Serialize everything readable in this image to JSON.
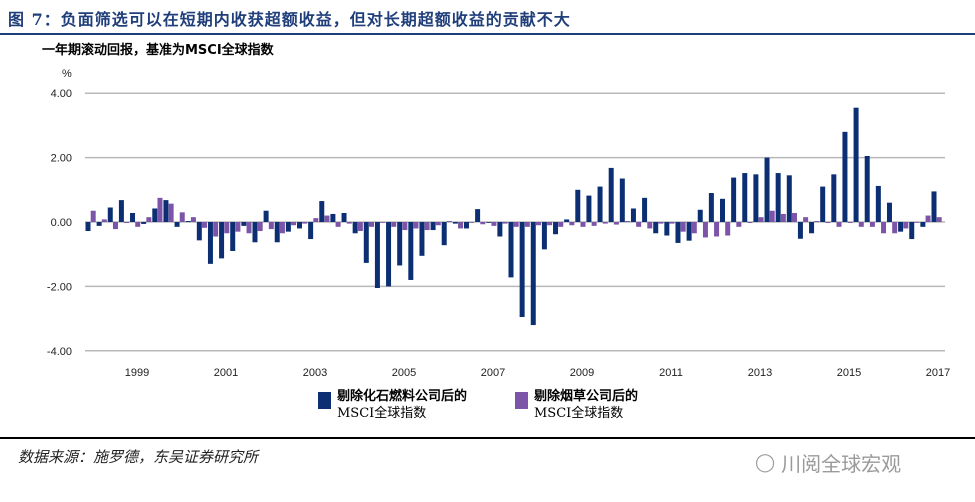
{
  "header": {
    "title": "图 7：负面筛选可以在短期内收获超额收益，但对长期超额收益的贡献不大",
    "subtitle": "一年期滚动回报，基准为MSCI全球指数"
  },
  "chart_data": {
    "type": "bar",
    "ylabel": "%",
    "ylim": [
      -4,
      4
    ],
    "yticks": [
      "4.00",
      "2.00",
      "0.00",
      "-2.00",
      "-4.00"
    ],
    "ytick_values": [
      4,
      2,
      0,
      -2,
      -4
    ],
    "xtick_labels": [
      "1999",
      "2001",
      "2003",
      "2005",
      "2007",
      "2009",
      "2011",
      "2013",
      "2015",
      "2017"
    ],
    "grid": true,
    "legend_placement": "bottom",
    "series": [
      {
        "name": "剔除化石燃料公司后的MSCI全球指数",
        "name_line1": "剔除化石燃料公司后的",
        "name_line2": "MSCI全球指数",
        "color": "#0b2f72",
        "values": [
          -0.28,
          -0.12,
          0.45,
          0.68,
          0.28,
          -0.06,
          0.42,
          0.68,
          -0.15,
          0.03,
          -0.57,
          -1.3,
          -1.13,
          -0.9,
          -0.12,
          -0.63,
          0.35,
          -0.63,
          -0.3,
          -0.2,
          -0.53,
          0.65,
          0.25,
          0.28,
          -0.35,
          -1.27,
          -2.05,
          -2.0,
          -1.35,
          -1.8,
          -1.05,
          -0.25,
          -0.72,
          -0.05,
          -0.2,
          0.4,
          0.0,
          -0.45,
          -1.72,
          -2.95,
          -3.2,
          -0.85,
          -0.38,
          0.08,
          1.0,
          0.82,
          1.1,
          1.68,
          1.35,
          0.42,
          0.75,
          -0.35,
          -0.42,
          -0.65,
          -0.58,
          0.38,
          0.9,
          0.72,
          1.38,
          1.52,
          1.48,
          2.0,
          1.52,
          1.45,
          -0.52,
          -0.35,
          1.1,
          1.48,
          2.8,
          3.55,
          2.05,
          1.12,
          0.6,
          -0.3,
          -0.53,
          -0.15,
          0.95
        ]
      },
      {
        "name": "剔除烟草公司后的MSCI全球指数",
        "name_line1": "剔除烟草公司后的",
        "name_line2": "MSCI全球指数",
        "color": "#7d55a8",
        "values": [
          0.35,
          0.08,
          -0.22,
          -0.03,
          -0.15,
          0.15,
          0.75,
          0.57,
          0.3,
          0.15,
          -0.18,
          -0.45,
          -0.35,
          -0.3,
          -0.35,
          -0.28,
          -0.22,
          -0.35,
          -0.1,
          -0.05,
          0.12,
          0.2,
          -0.15,
          -0.05,
          -0.28,
          -0.15,
          0.0,
          -0.15,
          -0.25,
          -0.2,
          -0.25,
          -0.1,
          0.03,
          -0.2,
          0.0,
          -0.07,
          -0.12,
          -0.05,
          -0.15,
          -0.15,
          -0.1,
          -0.1,
          -0.15,
          -0.1,
          -0.15,
          -0.12,
          -0.05,
          -0.08,
          0.03,
          -0.15,
          -0.2,
          -0.05,
          -0.05,
          -0.3,
          -0.35,
          -0.48,
          -0.45,
          -0.42,
          -0.15,
          -0.03,
          0.15,
          0.35,
          0.25,
          0.28,
          0.15,
          0.03,
          -0.03,
          -0.15,
          -0.03,
          -0.15,
          -0.15,
          -0.35,
          -0.35,
          -0.2,
          0.0,
          0.2,
          0.15
        ]
      }
    ]
  },
  "footer": {
    "source": "数据来源：施罗德，东吴证券研究所",
    "watermark": "川阅全球宏观"
  }
}
